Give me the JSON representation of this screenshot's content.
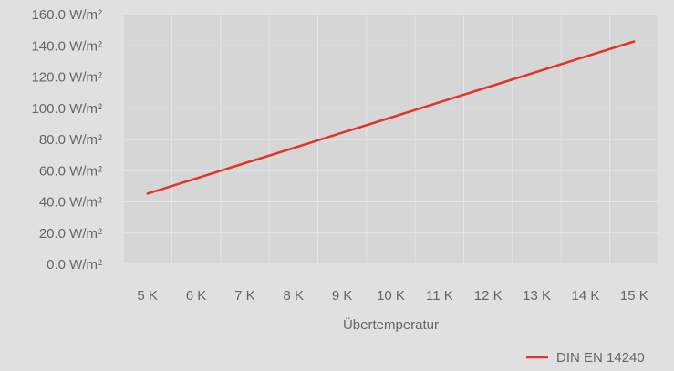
{
  "colors": {
    "background": "#e0e0e0",
    "plot_area": "#d6d6d6",
    "grid": "#e6e6e6",
    "line": "#e0352b",
    "text": "#666666"
  },
  "chart_data": {
    "type": "line",
    "xlabel": "Übertemperatur",
    "ylabel": "",
    "x": [
      5,
      15
    ],
    "x_ticks": [
      5,
      6,
      7,
      8,
      9,
      10,
      11,
      12,
      13,
      14,
      15
    ],
    "x_tick_labels": [
      "5 K",
      "6 K",
      "7 K",
      "8 K",
      "9 K",
      "10 K",
      "11 K",
      "12 K",
      "13 K",
      "14 K",
      "15 K"
    ],
    "xlim": [
      4.5,
      15.5
    ],
    "y_ticks": [
      0,
      20,
      40,
      60,
      80,
      100,
      120,
      140,
      160
    ],
    "y_tick_labels": [
      "0.0 W/m²",
      "20.0 W/m²",
      "40.0 W/m²",
      "60.0 W/m²",
      "80.0 W/m²",
      "100.0 W/m²",
      "120.0 W/m²",
      "140.0 W/m²",
      "160.0 W/m²"
    ],
    "ylim": [
      0,
      160
    ],
    "grid": true,
    "legend_position": "bottom-right",
    "series": [
      {
        "name": "DIN EN 14240",
        "x": [
          5,
          6,
          7,
          8,
          9,
          10,
          11,
          12,
          13,
          14,
          15
        ],
        "values": [
          45.3,
          55.0,
          64.8,
          74.5,
          84.3,
          94.0,
          103.8,
          113.6,
          123.3,
          133.1,
          142.8
        ]
      }
    ]
  }
}
